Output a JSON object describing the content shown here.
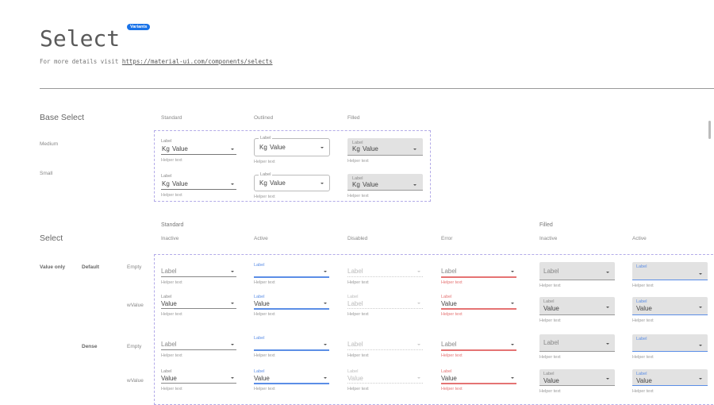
{
  "header": {
    "title": "Select",
    "badge": "Variants",
    "subtitle_prefix": "For more details visit ",
    "subtitle_link": "https://material-ui.com/components/selects"
  },
  "base": {
    "title": "Base Select",
    "columns": [
      "Standard",
      "Outlined",
      "Filled"
    ],
    "rows": [
      {
        "name": "Medium",
        "prefix": "Kg",
        "value": "Value",
        "label": "Label",
        "helper": "Helper text"
      },
      {
        "name": "Small",
        "prefix": "Kg",
        "value": "Value",
        "label": "Label",
        "helper": "Helper text"
      }
    ]
  },
  "select": {
    "title": "Select",
    "groups": [
      {
        "label": "Standard"
      },
      {
        "label": "Filled"
      }
    ],
    "columns": [
      "Inactive",
      "Active",
      "Disabled",
      "Error",
      "Inactive",
      "Active"
    ],
    "type_label": "Value only",
    "rows": [
      {
        "size": "Default",
        "kind": "Empty",
        "cells": [
          {
            "label": "Label",
            "value": "",
            "helper": "Helper text"
          },
          {
            "label": "Label",
            "value": "",
            "helper": "Helper text"
          },
          {
            "label": "Label",
            "value": "",
            "helper": "Helper text"
          },
          {
            "label": "Label",
            "value": "",
            "helper": "Helper text"
          },
          {
            "label": "Label",
            "value": "",
            "helper": "Helper text"
          },
          {
            "label": "Label",
            "value": "",
            "helper": "Helper text"
          }
        ]
      },
      {
        "size": "",
        "kind": "wValue",
        "cells": [
          {
            "label": "Label",
            "value": "Value",
            "helper": "Helper text"
          },
          {
            "label": "Label",
            "value": "Value",
            "helper": "Helper text"
          },
          {
            "label": "Label",
            "value": "Label",
            "helper": "Helper text"
          },
          {
            "label": "Label",
            "value": "Value",
            "helper": "Helper text"
          },
          {
            "label": "Label",
            "value": "Value",
            "helper": "Helper text"
          },
          {
            "label": "Label",
            "value": "Value",
            "helper": "Helper text"
          }
        ]
      },
      {
        "size": "Dense",
        "kind": "Empty",
        "cells": [
          {
            "label": "Label",
            "value": "",
            "helper": "Helper text"
          },
          {
            "label": "Label",
            "value": "",
            "helper": "Helper text"
          },
          {
            "label": "Label",
            "value": "",
            "helper": "Helper text"
          },
          {
            "label": "Label",
            "value": "",
            "helper": "Helper text"
          },
          {
            "label": "Label",
            "value": "",
            "helper": "Helper text"
          },
          {
            "label": "Label",
            "value": "",
            "helper": "Helper text"
          }
        ]
      },
      {
        "size": "",
        "kind": "wValue",
        "cells": [
          {
            "label": "Label",
            "value": "Value",
            "helper": "Helper text"
          },
          {
            "label": "Label",
            "value": "Value",
            "helper": "Helper text"
          },
          {
            "label": "Label",
            "value": "Value",
            "helper": "Helper text"
          },
          {
            "label": "Label",
            "value": "Value",
            "helper": "Helper text"
          },
          {
            "label": "Label",
            "value": "Value",
            "helper": "Helper text"
          },
          {
            "label": "Label",
            "value": "Value",
            "helper": "Helper text"
          }
        ]
      }
    ]
  },
  "colors": {
    "active": "#5b8ee6",
    "error": "#e57373",
    "filled_bg": "#e2e2e2",
    "badge": "#1a73e8"
  }
}
